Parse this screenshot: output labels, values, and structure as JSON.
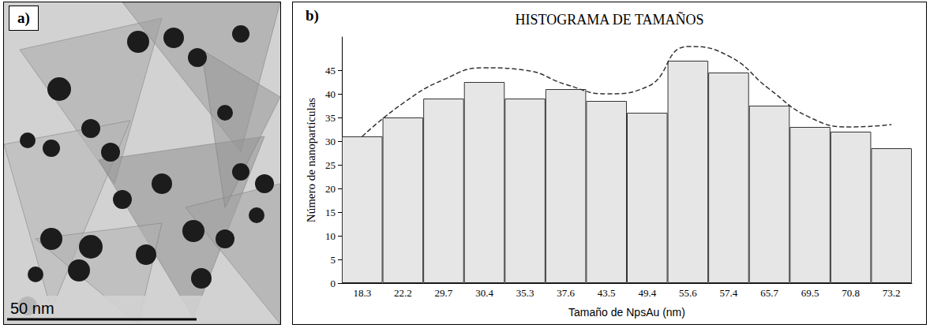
{
  "image_panel": {
    "label": "a)",
    "scale_bar_label": "50 nm"
  },
  "chart_data": {
    "type": "bar",
    "panel_label": "b)",
    "title": "HISTOGRAMA DE TAMAÑOS",
    "x_label": "Tamaño de NpsAu (nm)",
    "y_label": "Número de nanopartículas",
    "categories": [
      "18.3",
      "22.2",
      "29.7",
      "30.4",
      "35.3",
      "37.6",
      "43.5",
      "49.4",
      "55.6",
      "57.4",
      "65.7",
      "69.5",
      "70.8",
      "73.2"
    ],
    "series": [
      {
        "type": "bar",
        "color": "#e6e6e6",
        "values": [
          31,
          35,
          39,
          42.5,
          39,
          41,
          38.5,
          36,
          47,
          44.5,
          37.5,
          33,
          32,
          28.5
        ]
      },
      {
        "type": "line",
        "color": "#333333",
        "line_style": "dashed",
        "marker": "none",
        "values": [
          31,
          38,
          43,
          45.5,
          45,
          42,
          40,
          41.5,
          50,
          48,
          41,
          35,
          33,
          33.5
        ]
      }
    ],
    "ylim": [
      0,
      52
    ],
    "yticks": [
      0,
      5,
      10,
      15,
      20,
      25,
      30,
      35,
      40,
      45
    ],
    "grid": false
  }
}
